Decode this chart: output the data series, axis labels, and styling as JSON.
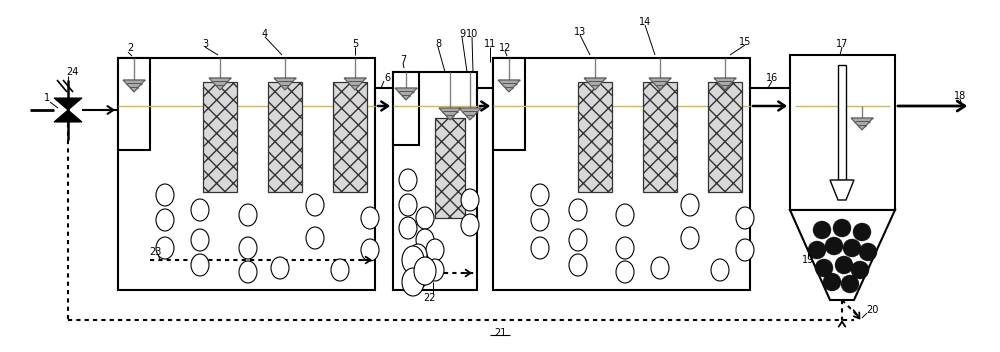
{
  "bg_color": "#ffffff",
  "line_color": "#000000",
  "media_fill": "#d8d8d8",
  "media_edge": "#333333",
  "diffuser_fill": "#aaaaaa",
  "diffuser_edge": "#555555",
  "water_line_color": "#c8b870",
  "bubble_fill": "#ffffff",
  "sludge_fill": "#111111",
  "figsize": [
    10.0,
    3.52
  ],
  "dpi": 100
}
